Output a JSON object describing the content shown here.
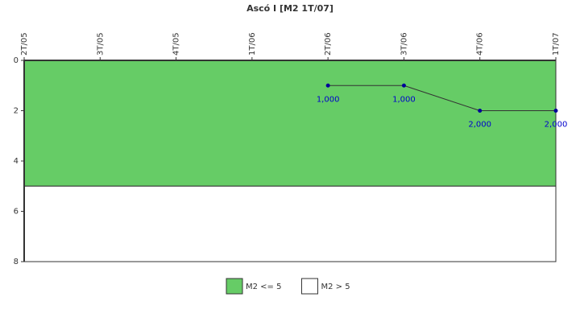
{
  "chart_data": {
    "type": "line",
    "title": "Ascó I [M2 1T/07]",
    "categories": [
      "2T/05",
      "3T/05",
      "4T/05",
      "1T/06",
      "2T/06",
      "3T/06",
      "4T/06",
      "1T/07"
    ],
    "series": [
      {
        "name": null,
        "color": "#333333",
        "marker_color": "#000099",
        "values": [
          null,
          null,
          null,
          null,
          1,
          1,
          2,
          2
        ],
        "value_labels": [
          null,
          null,
          null,
          null,
          "1,000",
          "1,000",
          "2,000",
          "2,000"
        ]
      }
    ],
    "bands": [
      {
        "name": "M2 <= 5",
        "color": "#66cc66",
        "from": 0,
        "to": 5
      },
      {
        "name": "M2 > 5",
        "color": "#ffffff",
        "from": 5,
        "to": 8
      }
    ],
    "ylim": [
      0,
      8
    ],
    "yticks": [
      0,
      2,
      4,
      6,
      8
    ],
    "y_inverted": true,
    "legend": "bottom"
  }
}
